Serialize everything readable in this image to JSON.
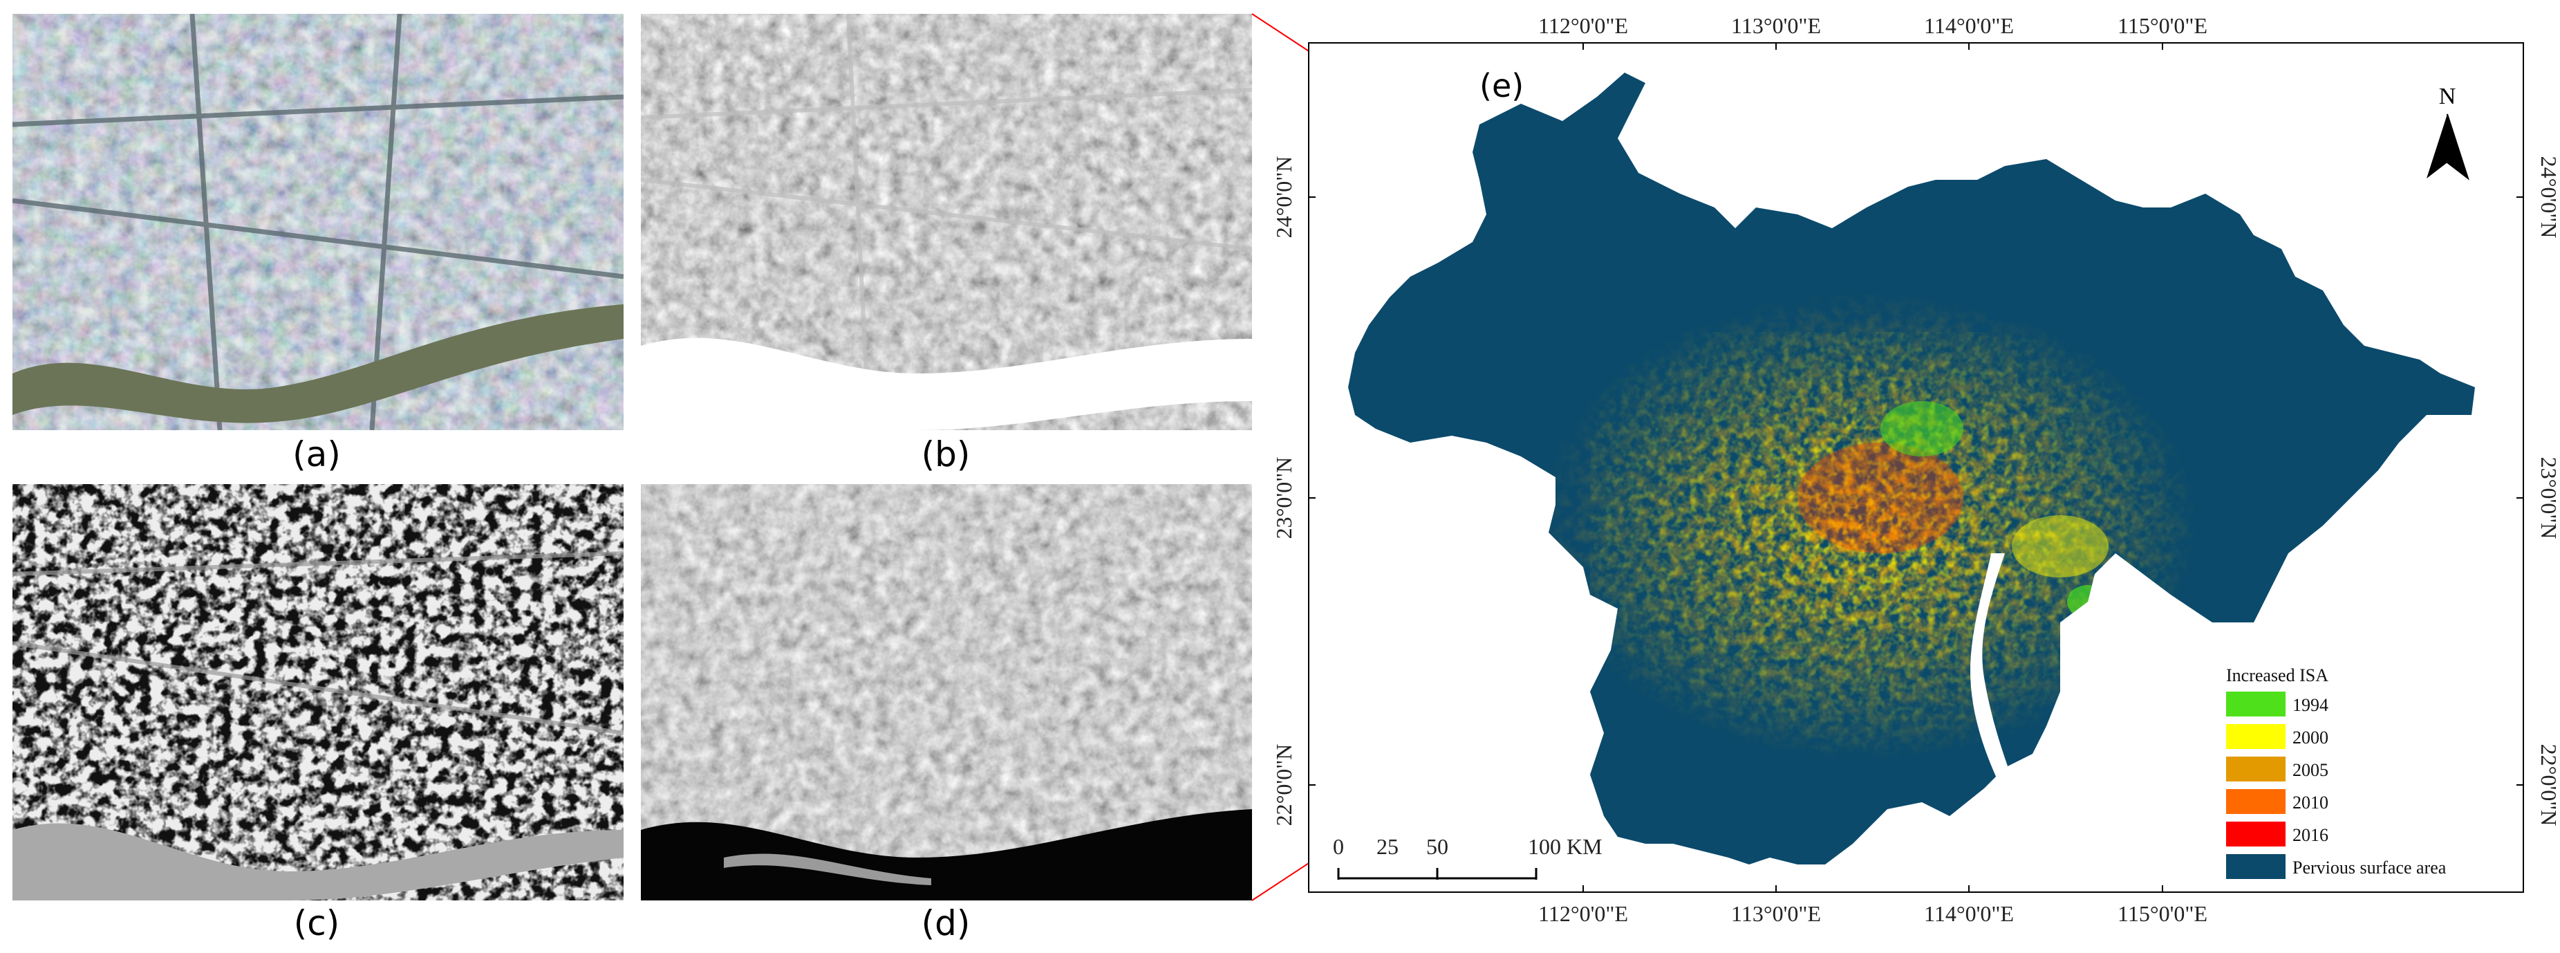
{
  "panels": [
    {
      "label": "(a)"
    },
    {
      "label": "(b)"
    },
    {
      "label": "(c)"
    },
    {
      "label": "(d)"
    }
  ],
  "map": {
    "label": "(e)",
    "north_label": "N",
    "lon_ticks": [
      "112°0'0\"E",
      "113°0'0\"E",
      "114°0'0\"E",
      "115°0'0\"E"
    ],
    "lat_ticks": [
      "22°0'0\"N",
      "23°0'0\"N",
      "24°0'0\"N"
    ],
    "scale": {
      "labels": [
        "0",
        "25",
        "50",
        "100 KM"
      ]
    },
    "legend": {
      "title": "Increased ISA",
      "items": [
        {
          "label": "1994",
          "color": "#4ee11b"
        },
        {
          "label": "2000",
          "color": "#ffff00"
        },
        {
          "label": "2005",
          "color": "#e29a00"
        },
        {
          "label": "2010",
          "color": "#ff6a00"
        },
        {
          "label": "2016",
          "color": "#ff0000"
        },
        {
          "label": "Pervious surface area",
          "color": "#0b4a6b"
        }
      ]
    },
    "colors": {
      "base": "#0b4a6b",
      "link_line": "#ff0000",
      "frame": "#000000"
    }
  }
}
